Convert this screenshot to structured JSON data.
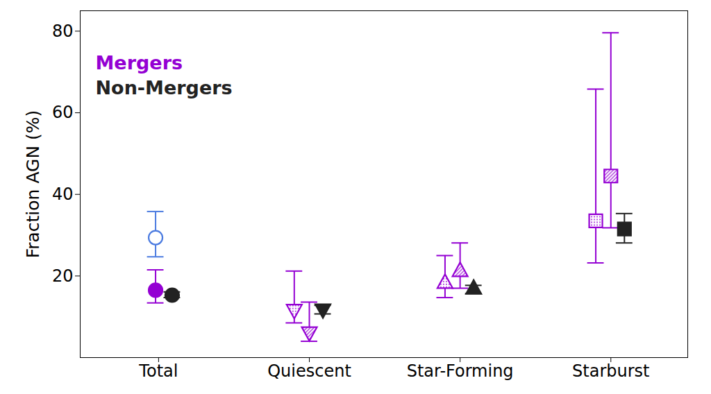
{
  "chart_data": {
    "type": "scatter",
    "ylabel": "Fraction AGN (%)",
    "categories": [
      "Total",
      "Quiescent",
      "Star-Forming",
      "Starburst"
    ],
    "series": [
      {
        "color": "#4b7be0",
        "marker": "open",
        "values": [
          29.4,
          null,
          null,
          null
        ],
        "lower": [
          24.7,
          null,
          null,
          null
        ],
        "upper": [
          35.8,
          null,
          null,
          null
        ]
      },
      {
        "name": "Mergers",
        "color": "#9400d3",
        "marker": "filled",
        "values": [
          16.5,
          null,
          null,
          null
        ],
        "lower": [
          13.4,
          null,
          null,
          null
        ],
        "upper": [
          21.5,
          null,
          null,
          null
        ]
      },
      {
        "color": "#9400d3",
        "marker": "dotted",
        "values": [
          null,
          11.7,
          18.3,
          33.5
        ],
        "lower": [
          null,
          8.5,
          14.7,
          23.2
        ],
        "upper": [
          null,
          21.2,
          25.0,
          65.8
        ]
      },
      {
        "color": "#9400d3",
        "marker": "hatched",
        "values": [
          null,
          6.2,
          21.2,
          44.5
        ],
        "lower": [
          null,
          4.0,
          17.0,
          31.8
        ],
        "upper": [
          null,
          13.6,
          28.1,
          79.6
        ]
      },
      {
        "name": "Non-Mergers",
        "color": "#222222",
        "marker": "filled",
        "values": [
          15.3,
          11.8,
          16.9,
          31.5
        ],
        "lower": [
          14.7,
          10.7,
          15.7,
          28.1
        ],
        "upper": [
          16.1,
          12.8,
          17.7,
          35.3
        ]
      }
    ],
    "ylim": [
      0,
      85
    ],
    "yticks": [
      20,
      40,
      60,
      80
    ],
    "grid": false,
    "legend": "upper left"
  }
}
